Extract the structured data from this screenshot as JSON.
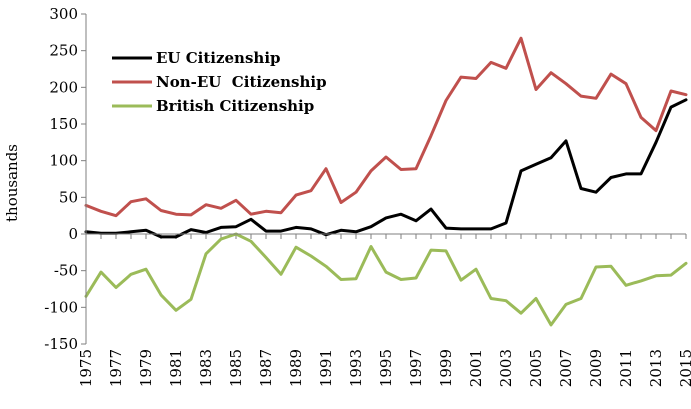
{
  "chart_data": {
    "type": "line",
    "title": "",
    "xlabel": "",
    "ylabel": "thousands",
    "ylim": [
      -150,
      300
    ],
    "yticks": [
      -150,
      -100,
      -50,
      0,
      50,
      100,
      150,
      200,
      250,
      300
    ],
    "yticks_text": [
      "-150",
      "-100",
      "-50",
      "0",
      "50",
      "100",
      "150",
      "200",
      "250",
      "300"
    ],
    "xlim": [
      1975,
      2015
    ],
    "x": [
      1975,
      1976,
      1977,
      1978,
      1979,
      1980,
      1981,
      1982,
      1983,
      1984,
      1985,
      1986,
      1987,
      1988,
      1989,
      1990,
      1991,
      1992,
      1993,
      1994,
      1995,
      1996,
      1997,
      1998,
      1999,
      2000,
      2001,
      2002,
      2003,
      2004,
      2005,
      2006,
      2007,
      2008,
      2009,
      2010,
      2011,
      2012,
      2013,
      2014,
      2015
    ],
    "xtick_labels": [
      "1975",
      "1977",
      "1979",
      "1981",
      "1983",
      "1985",
      "1987",
      "1989",
      "1991",
      "1993",
      "1995",
      "1997",
      "1999",
      "2001",
      "2003",
      "2005",
      "2007",
      "2009",
      "2011",
      "2013",
      "2015"
    ],
    "grid": false,
    "legend_position": "top-left",
    "series": [
      {
        "name": "EU Citizenship",
        "color": "#000000",
        "values": [
          3,
          1,
          1,
          3,
          5,
          -4,
          -4,
          6,
          2,
          9,
          10,
          20,
          4,
          4,
          9,
          7,
          -1,
          5,
          3,
          10,
          22,
          27,
          18,
          34,
          8,
          7,
          7,
          7,
          15,
          86,
          95,
          104,
          127,
          62,
          57,
          77,
          82,
          82,
          125,
          173,
          183
        ]
      },
      {
        "name": "Non-EU  Citizenship",
        "color": "#c0504d",
        "values": [
          39,
          31,
          25,
          44,
          48,
          32,
          27,
          26,
          40,
          35,
          46,
          27,
          31,
          29,
          53,
          59,
          89,
          43,
          57,
          86,
          105,
          88,
          89,
          134,
          182,
          214,
          212,
          234,
          226,
          267,
          197,
          220,
          205,
          188,
          185,
          218,
          205,
          159,
          141,
          195,
          190
        ]
      },
      {
        "name": "British Citizenship",
        "color": "#9bbb59",
        "values": [
          -85,
          -52,
          -73,
          -55,
          -48,
          -83,
          -104,
          -89,
          -27,
          -7,
          0,
          -10,
          -32,
          -55,
          -18,
          -30,
          -44,
          -62,
          -61,
          -17,
          -52,
          -62,
          -60,
          -22,
          -23,
          -63,
          -48,
          -88,
          -91,
          -108,
          -88,
          -124,
          -96,
          -88,
          -45,
          -44,
          -70,
          -64,
          -57,
          -56,
          -40
        ]
      }
    ]
  }
}
